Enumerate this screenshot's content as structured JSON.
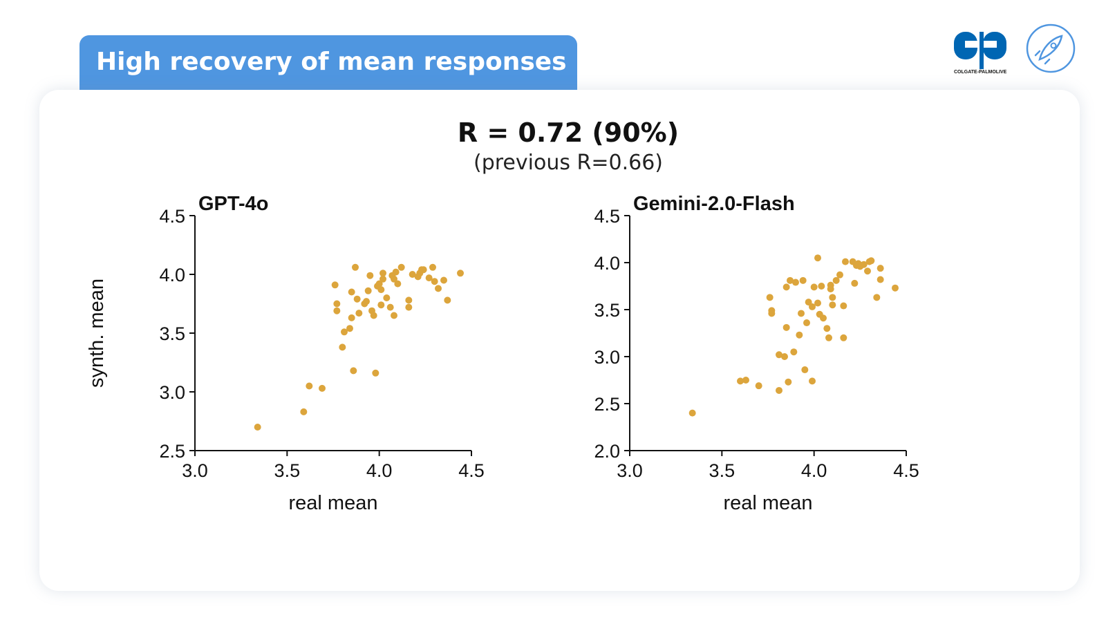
{
  "slide": {
    "title": "High recovery of mean responses",
    "headline": "R = 0.72 (90%)",
    "subheadline": "(previous R=0.66)"
  },
  "logos": {
    "brand_text": "COLGATE-PALMOLIVE",
    "brand_color": "#0066b3",
    "rocket_icon": "rocket-icon"
  },
  "colors": {
    "title_tab": "#4f96e0",
    "point": "#dca53c"
  },
  "chart_data": [
    {
      "type": "scatter",
      "title": "GPT-4o",
      "xlabel": "real mean",
      "ylabel": "synth. mean",
      "xlim": [
        3.0,
        4.5
      ],
      "ylim": [
        2.5,
        4.5
      ],
      "xticks": [
        "3.0",
        "3.5",
        "4.0",
        "4.5"
      ],
      "yticks": [
        "2.5",
        "3.0",
        "3.5",
        "4.0",
        "4.5"
      ],
      "grid": false,
      "points": [
        [
          3.34,
          2.7
        ],
        [
          3.59,
          2.83
        ],
        [
          3.62,
          3.05
        ],
        [
          3.69,
          3.03
        ],
        [
          3.76,
          3.91
        ],
        [
          3.77,
          3.75
        ],
        [
          3.77,
          3.69
        ],
        [
          3.8,
          3.38
        ],
        [
          3.81,
          3.51
        ],
        [
          3.84,
          3.54
        ],
        [
          3.85,
          3.63
        ],
        [
          3.85,
          3.85
        ],
        [
          3.86,
          3.18
        ],
        [
          3.87,
          4.06
        ],
        [
          3.88,
          3.79
        ],
        [
          3.89,
          3.67
        ],
        [
          3.92,
          3.75
        ],
        [
          3.93,
          3.77
        ],
        [
          3.94,
          3.86
        ],
        [
          3.95,
          3.99
        ],
        [
          3.96,
          3.69
        ],
        [
          3.97,
          3.65
        ],
        [
          3.98,
          3.16
        ],
        [
          3.99,
          3.9
        ],
        [
          4.0,
          3.92
        ],
        [
          4.01,
          3.87
        ],
        [
          4.01,
          3.74
        ],
        [
          4.02,
          4.01
        ],
        [
          4.02,
          3.96
        ],
        [
          4.04,
          3.8
        ],
        [
          4.06,
          3.72
        ],
        [
          4.07,
          3.99
        ],
        [
          4.08,
          3.65
        ],
        [
          4.08,
          3.96
        ],
        [
          4.09,
          4.02
        ],
        [
          4.1,
          3.92
        ],
        [
          4.12,
          4.06
        ],
        [
          4.16,
          3.72
        ],
        [
          4.16,
          3.78
        ],
        [
          4.18,
          4.0
        ],
        [
          4.21,
          3.98
        ],
        [
          4.22,
          4.01
        ],
        [
          4.23,
          4.04
        ],
        [
          4.24,
          4.04
        ],
        [
          4.27,
          3.97
        ],
        [
          4.29,
          4.06
        ],
        [
          4.3,
          3.94
        ],
        [
          4.32,
          3.88
        ],
        [
          4.35,
          3.95
        ],
        [
          4.37,
          3.78
        ],
        [
          4.44,
          4.01
        ]
      ]
    },
    {
      "type": "scatter",
      "title": "Gemini-2.0-Flash",
      "xlabel": "real mean",
      "ylabel": "",
      "xlim": [
        3.0,
        4.5
      ],
      "ylim": [
        2.0,
        4.5
      ],
      "xticks": [
        "3.0",
        "3.5",
        "4.0",
        "4.5"
      ],
      "yticks": [
        "2.0",
        "2.5",
        "3.0",
        "3.5",
        "4.0",
        "4.5"
      ],
      "grid": false,
      "points": [
        [
          3.34,
          2.4
        ],
        [
          3.6,
          2.74
        ],
        [
          3.63,
          2.75
        ],
        [
          3.7,
          2.69
        ],
        [
          3.76,
          3.63
        ],
        [
          3.77,
          3.49
        ],
        [
          3.77,
          3.46
        ],
        [
          3.81,
          2.64
        ],
        [
          3.81,
          3.02
        ],
        [
          3.84,
          3.0
        ],
        [
          3.85,
          3.31
        ],
        [
          3.85,
          3.74
        ],
        [
          3.86,
          2.73
        ],
        [
          3.87,
          3.81
        ],
        [
          3.89,
          3.05
        ],
        [
          3.9,
          3.79
        ],
        [
          3.92,
          3.23
        ],
        [
          3.93,
          3.46
        ],
        [
          3.94,
          3.81
        ],
        [
          3.95,
          2.86
        ],
        [
          3.96,
          3.36
        ],
        [
          3.97,
          3.58
        ],
        [
          3.99,
          2.74
        ],
        [
          3.99,
          3.53
        ],
        [
          4.0,
          3.74
        ],
        [
          4.02,
          4.05
        ],
        [
          4.02,
          3.57
        ],
        [
          4.03,
          3.45
        ],
        [
          4.04,
          3.75
        ],
        [
          4.05,
          3.41
        ],
        [
          4.07,
          3.3
        ],
        [
          4.08,
          3.2
        ],
        [
          4.09,
          3.72
        ],
        [
          4.09,
          3.76
        ],
        [
          4.1,
          3.63
        ],
        [
          4.1,
          3.55
        ],
        [
          4.12,
          3.81
        ],
        [
          4.14,
          3.87
        ],
        [
          4.16,
          3.2
        ],
        [
          4.16,
          3.54
        ],
        [
          4.17,
          4.01
        ],
        [
          4.21,
          4.01
        ],
        [
          4.22,
          3.78
        ],
        [
          4.23,
          3.97
        ],
        [
          4.24,
          3.99
        ],
        [
          4.25,
          3.96
        ],
        [
          4.27,
          3.98
        ],
        [
          4.29,
          3.91
        ],
        [
          4.3,
          4.01
        ],
        [
          4.31,
          4.02
        ],
        [
          4.34,
          3.63
        ],
        [
          4.36,
          3.94
        ],
        [
          4.36,
          3.82
        ],
        [
          4.44,
          3.73
        ]
      ]
    }
  ]
}
